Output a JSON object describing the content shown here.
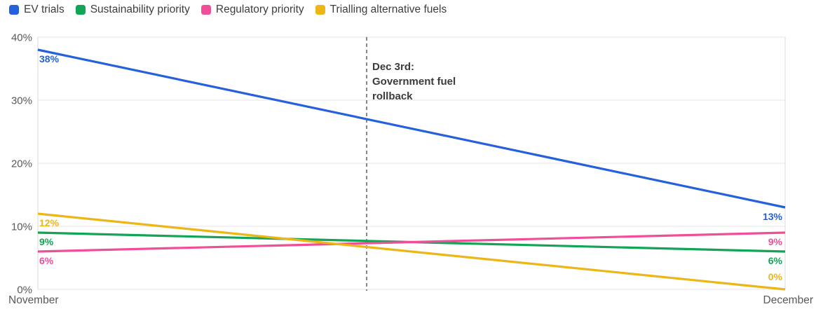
{
  "legend": {
    "items": [
      {
        "label": "EV trials",
        "color": "#2560dd"
      },
      {
        "label": "Sustainability priority",
        "color": "#12a457"
      },
      {
        "label": "Regulatory priority",
        "color": "#f04e98"
      },
      {
        "label": "Trialling alternative fuels",
        "color": "#edb617"
      }
    ]
  },
  "axes": {
    "y_tick_labels": [
      "0%",
      "10%",
      "20%",
      "30%",
      "40%"
    ],
    "x_tick_labels": [
      "November",
      "December"
    ]
  },
  "annotation": {
    "lines": [
      "Dec 3rd:",
      "Government fuel",
      "rollback"
    ]
  },
  "chart_data": {
    "type": "line",
    "x": [
      "November",
      "December"
    ],
    "series": [
      {
        "name": "EV trials",
        "color": "#2560dd",
        "values": [
          38,
          13
        ],
        "point_labels": [
          "38%",
          "13%"
        ]
      },
      {
        "name": "Sustainability priority",
        "color": "#12a457",
        "values": [
          9,
          6
        ],
        "point_labels": [
          "9%",
          "6%"
        ]
      },
      {
        "name": "Regulatory priority",
        "color": "#f04e98",
        "values": [
          6,
          9
        ],
        "point_labels": [
          "6%",
          "9%"
        ]
      },
      {
        "name": "Trialling alternative fuels",
        "color": "#edb617",
        "values": [
          12,
          0
        ],
        "point_labels": [
          "12%",
          "0%"
        ]
      }
    ],
    "ylim": [
      0,
      40
    ],
    "yticks": [
      0,
      10,
      20,
      30,
      40
    ],
    "grid": "horizontal",
    "legend_position": "top-left",
    "annotation": {
      "text": "Dec 3rd: Government fuel rollback",
      "x_fraction": 0.44,
      "style": "dashed-vertical-line"
    }
  },
  "colors": {
    "grid": "#ededed",
    "axis_boundary": "#e4e4e4",
    "tick_text": "#595959",
    "annotation_line": "#555555",
    "background": "#ffffff"
  }
}
